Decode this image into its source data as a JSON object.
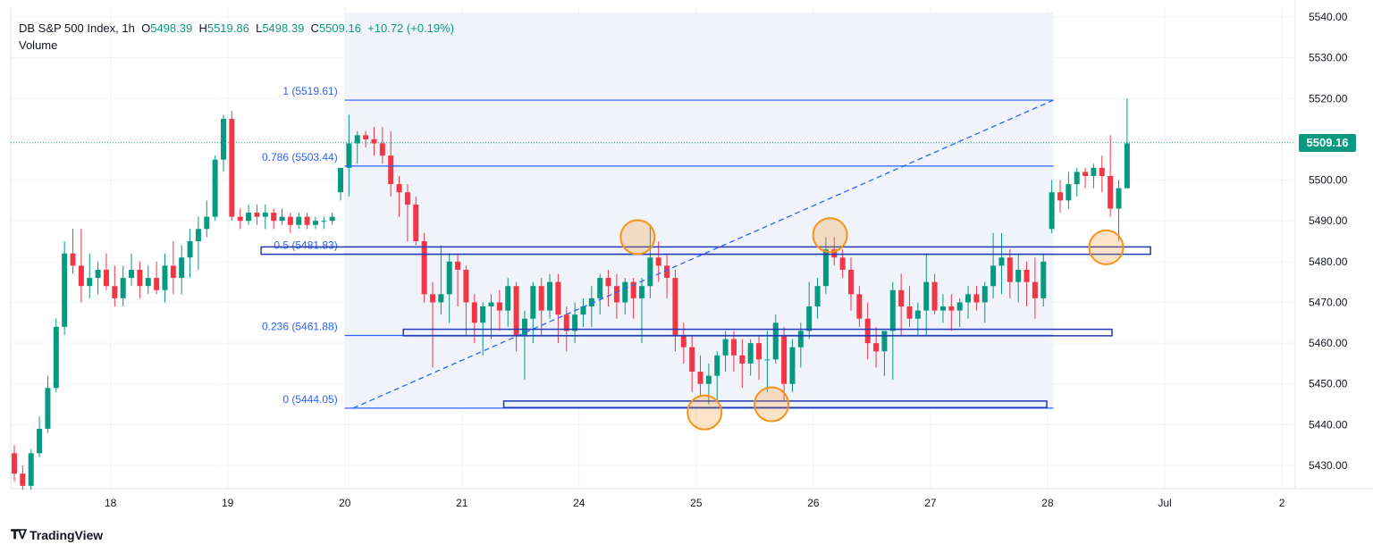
{
  "header": {
    "symbol": "DB S&P 500 Index, 1h",
    "open_label": "O",
    "open": "5498.39",
    "high_label": "H",
    "high": "5519.86",
    "low_label": "L",
    "low": "5498.39",
    "close_label": "C",
    "close": "5509.16",
    "change": "+10.72 (+0.19%)",
    "volume_label": "Volume"
  },
  "brand": {
    "name": "TradingView",
    "icon": "tradingview-logo-icon"
  },
  "last_price": "5509.16",
  "colors": {
    "up": "#089981",
    "down": "#f23645",
    "fib": "#2962ff",
    "circle": "#f7931a",
    "box": "#1e3ab8",
    "zone": "#f0f3fa"
  },
  "chart_data": {
    "type": "candlestick",
    "timeframe": "1h",
    "ylim": [
      5425,
      5542
    ],
    "y_ticks": [
      5430,
      5440,
      5450,
      5460,
      5470,
      5480,
      5490,
      5500,
      5510,
      5520,
      5530,
      5540
    ],
    "x_ticks": [
      {
        "label": "18",
        "bar": 11.5
      },
      {
        "label": "19",
        "bar": 25.5
      },
      {
        "label": "20",
        "bar": 39.5
      },
      {
        "label": "21",
        "bar": 53.5
      },
      {
        "label": "24",
        "bar": 67.5
      },
      {
        "label": "25",
        "bar": 81.5
      },
      {
        "label": "26",
        "bar": 95.5
      },
      {
        "label": "27",
        "bar": 109.5
      },
      {
        "label": "28",
        "bar": 123.5
      },
      {
        "label": "Jul",
        "bar": 137.5
      },
      {
        "label": "2",
        "bar": 151.5
      }
    ],
    "last_price_line": 5509.16,
    "candles": [
      [
        5433,
        5435,
        5426,
        5428
      ],
      [
        5428,
        5430,
        5424,
        5425
      ],
      [
        5425,
        5434,
        5424,
        5433
      ],
      [
        5433,
        5442,
        5432,
        5439
      ],
      [
        5439,
        5452,
        5438,
        5449
      ],
      [
        5449,
        5466,
        5448,
        5464
      ],
      [
        5464,
        5485,
        5462,
        5482
      ],
      [
        5482,
        5488,
        5477,
        5479
      ],
      [
        5479,
        5488,
        5470,
        5474
      ],
      [
        5474,
        5482,
        5471,
        5476
      ],
      [
        5476,
        5480,
        5472,
        5478
      ],
      [
        5478,
        5482,
        5473,
        5474
      ],
      [
        5474,
        5479,
        5469,
        5471
      ],
      [
        5471,
        5479,
        5469,
        5476
      ],
      [
        5476,
        5482,
        5474,
        5478
      ],
      [
        5478,
        5480,
        5471,
        5474
      ],
      [
        5474,
        5479,
        5472,
        5476
      ],
      [
        5476,
        5480,
        5472,
        5473
      ],
      [
        5473,
        5482,
        5470,
        5479
      ],
      [
        5479,
        5485,
        5472,
        5476
      ],
      [
        5476,
        5484,
        5472,
        5481
      ],
      [
        5481,
        5488,
        5476,
        5485
      ],
      [
        5485,
        5491,
        5478,
        5488
      ],
      [
        5488,
        5495,
        5486,
        5491
      ],
      [
        5491,
        5506,
        5490,
        5505
      ],
      [
        5505,
        5516,
        5502,
        5515
      ],
      [
        5515,
        5517,
        5490,
        5491
      ],
      [
        5491,
        5493,
        5488,
        5490
      ],
      [
        5490,
        5494,
        5489,
        5492
      ],
      [
        5492,
        5494,
        5489,
        5491
      ],
      [
        5491,
        5494,
        5488,
        5492
      ],
      [
        5492,
        5493,
        5488,
        5490
      ],
      [
        5490,
        5493,
        5489,
        5491
      ],
      [
        5491,
        5492,
        5487,
        5489
      ],
      [
        5489,
        5492,
        5488,
        5491
      ],
      [
        5491,
        5492,
        5488,
        5489
      ],
      [
        5489,
        5491,
        5488,
        5490
      ],
      [
        5490,
        5491,
        5488,
        5490
      ],
      [
        5490,
        5492,
        5489,
        5491
      ],
      [
        5497,
        5502,
        5495,
        5503
      ],
      [
        5503,
        5516,
        5496,
        5509
      ],
      [
        5509,
        5512,
        5504,
        5511
      ],
      [
        5511,
        5512,
        5508,
        5510
      ],
      [
        5510,
        5513,
        5506,
        5509
      ],
      [
        5509,
        5513,
        5504,
        5506
      ],
      [
        5506,
        5512,
        5496,
        5499
      ],
      [
        5499,
        5501,
        5491,
        5497
      ],
      [
        5497,
        5499,
        5485,
        5494
      ],
      [
        5494,
        5496,
        5484,
        5485
      ],
      [
        5485,
        5487,
        5470,
        5472
      ],
      [
        5472,
        5475,
        5454,
        5470
      ],
      [
        5470,
        5484,
        5467,
        5472
      ],
      [
        5472,
        5482,
        5465,
        5480
      ],
      [
        5480,
        5482,
        5469,
        5478
      ],
      [
        5478,
        5479,
        5462,
        5470
      ],
      [
        5470,
        5472,
        5460,
        5465
      ],
      [
        5465,
        5470,
        5457,
        5469
      ],
      [
        5469,
        5472,
        5461,
        5470
      ],
      [
        5470,
        5473,
        5463,
        5468
      ],
      [
        5468,
        5476,
        5464,
        5474
      ],
      [
        5474,
        5475,
        5458,
        5462
      ],
      [
        5462,
        5468,
        5451,
        5466
      ],
      [
        5466,
        5475,
        5460,
        5474
      ],
      [
        5474,
        5476,
        5462,
        5468
      ],
      [
        5468,
        5477,
        5466,
        5475
      ],
      [
        5475,
        5477,
        5460,
        5467
      ],
      [
        5467,
        5469,
        5458,
        5463
      ],
      [
        5463,
        5470,
        5460,
        5467
      ],
      [
        5467,
        5471,
        5464,
        5469
      ],
      [
        5469,
        5474,
        5464,
        5471
      ],
      [
        5471,
        5477,
        5467,
        5476
      ],
      [
        5476,
        5478,
        5469,
        5474
      ],
      [
        5474,
        5477,
        5466,
        5470
      ],
      [
        5470,
        5476,
        5467,
        5475
      ],
      [
        5475,
        5476,
        5466,
        5471
      ],
      [
        5471,
        5476,
        5460,
        5474
      ],
      [
        5474,
        5489,
        5471,
        5481
      ],
      [
        5481,
        5485,
        5475,
        5479
      ],
      [
        5479,
        5482,
        5471,
        5476
      ],
      [
        5476,
        5478,
        5458,
        5462
      ],
      [
        5462,
        5465,
        5455,
        5459
      ],
      [
        5459,
        5462,
        5448,
        5453
      ],
      [
        5453,
        5457,
        5447,
        5450
      ],
      [
        5450,
        5455,
        5445,
        5452
      ],
      [
        5452,
        5458,
        5446,
        5457
      ],
      [
        5457,
        5463,
        5453,
        5461
      ],
      [
        5461,
        5463,
        5453,
        5457
      ],
      [
        5457,
        5461,
        5449,
        5455
      ],
      [
        5455,
        5461,
        5452,
        5460
      ],
      [
        5460,
        5462,
        5451,
        5456
      ],
      [
        5456,
        5463,
        5448,
        5456
      ],
      [
        5456,
        5467,
        5455,
        5465
      ],
      [
        5462,
        5464,
        5446,
        5450
      ],
      [
        5450,
        5461,
        5448,
        5459
      ],
      [
        5459,
        5465,
        5454,
        5463
      ],
      [
        5463,
        5475,
        5461,
        5469
      ],
      [
        5469,
        5476,
        5466,
        5474
      ],
      [
        5474,
        5486,
        5472,
        5483
      ],
      [
        5483,
        5486,
        5479,
        5481
      ],
      [
        5481,
        5483,
        5476,
        5478
      ],
      [
        5478,
        5481,
        5468,
        5472
      ],
      [
        5472,
        5474,
        5464,
        5466
      ],
      [
        5466,
        5470,
        5456,
        5460
      ],
      [
        5460,
        5464,
        5454,
        5458
      ],
      [
        5458,
        5462,
        5452,
        5463
      ],
      [
        5463,
        5475,
        5451,
        5473
      ],
      [
        5473,
        5477,
        5462,
        5469
      ],
      [
        5469,
        5474,
        5464,
        5466
      ],
      [
        5466,
        5470,
        5462,
        5468
      ],
      [
        5468,
        5482,
        5462,
        5475
      ],
      [
        5475,
        5477,
        5467,
        5468
      ],
      [
        5468,
        5472,
        5465,
        5469
      ],
      [
        5469,
        5472,
        5463,
        5468
      ],
      [
        5468,
        5471,
        5464,
        5470
      ],
      [
        5470,
        5474,
        5466,
        5472
      ],
      [
        5472,
        5474,
        5468,
        5470
      ],
      [
        5470,
        5475,
        5465,
        5474
      ],
      [
        5474,
        5487,
        5471,
        5479
      ],
      [
        5479,
        5487,
        5472,
        5481
      ],
      [
        5481,
        5483,
        5471,
        5475
      ],
      [
        5475,
        5482,
        5470,
        5478
      ],
      [
        5478,
        5480,
        5469,
        5475
      ],
      [
        5475,
        5481,
        5466,
        5471
      ],
      [
        5471,
        5482,
        5469,
        5480
      ],
      [
        5488,
        5500,
        5487,
        5497
      ],
      [
        5497,
        5500,
        5492,
        5495
      ],
      [
        5495,
        5502,
        5493,
        5499
      ],
      [
        5499,
        5503,
        5496,
        5502
      ],
      [
        5502,
        5503,
        5498,
        5501
      ],
      [
        5501,
        5504,
        5498,
        5503
      ],
      [
        5503,
        5506,
        5497,
        5501
      ],
      [
        5501,
        5511,
        5491,
        5493
      ],
      [
        5493,
        5500,
        5485,
        5498
      ],
      [
        5498,
        5520,
        5498,
        5509
      ]
    ],
    "fibonacci": {
      "start_bar": 39.5,
      "end_bar": 124.2,
      "levels": [
        {
          "label": "1 (5519.61)",
          "price": 5519.61
        },
        {
          "label": "0.786 (5503.44)",
          "price": 5503.44
        },
        {
          "label": "0.5 (5481.83)",
          "price": 5481.83
        },
        {
          "label": "0.236 (5461.88)",
          "price": 5461.88
        },
        {
          "label": "0 (5444.05)",
          "price": 5444.05
        }
      ],
      "trend_from": {
        "bar": 40.5,
        "price": 5444.05
      },
      "trend_to": {
        "bar": 124.2,
        "price": 5519.61
      }
    },
    "zones": [
      {
        "from_bar": 29.5,
        "to_bar": 135.8,
        "low": 5481.8,
        "high": 5483.6
      },
      {
        "from_bar": 46.5,
        "to_bar": 131.2,
        "low": 5461.8,
        "high": 5463.4
      },
      {
        "from_bar": 58.5,
        "to_bar": 123.4,
        "low": 5444.2,
        "high": 5445.8
      }
    ],
    "circles": [
      {
        "bar": 74.5,
        "price": 5486
      },
      {
        "bar": 97.5,
        "price": 5486.5
      },
      {
        "bar": 82.5,
        "price": 5443
      },
      {
        "bar": 90.5,
        "price": 5445
      },
      {
        "bar": 130.5,
        "price": 5483.5
      }
    ]
  }
}
